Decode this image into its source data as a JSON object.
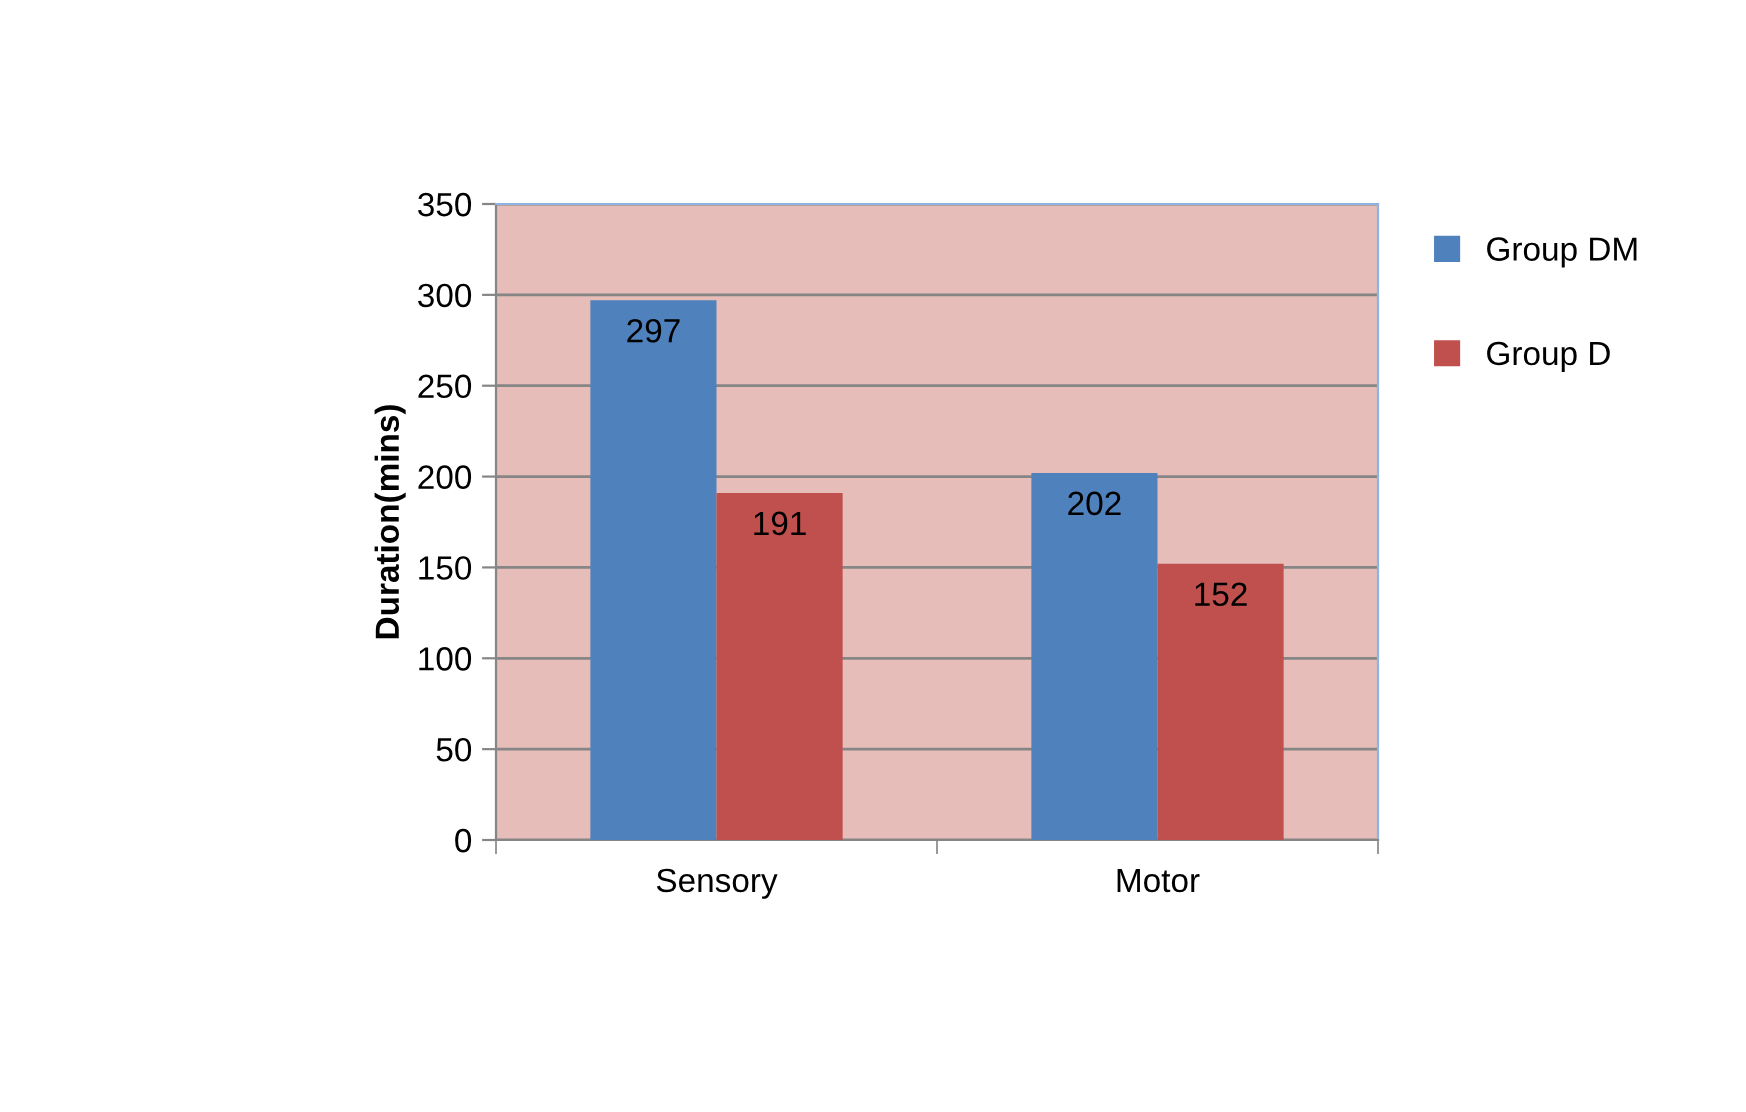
{
  "chart_data": {
    "type": "bar",
    "ylabel": "Duration(mins)",
    "categories": [
      "Sensory",
      "Motor"
    ],
    "series": [
      {
        "name": "Group DM",
        "color": "#4f81bd",
        "values": [
          297,
          202
        ]
      },
      {
        "name": "Group D",
        "color": "#c0504d",
        "values": [
          191,
          152
        ]
      }
    ],
    "ylim": [
      0,
      350
    ],
    "yticks": [
      0,
      50,
      100,
      150,
      200,
      250,
      300,
      350
    ],
    "grid": "y",
    "legend": "right",
    "data_labels": true
  }
}
